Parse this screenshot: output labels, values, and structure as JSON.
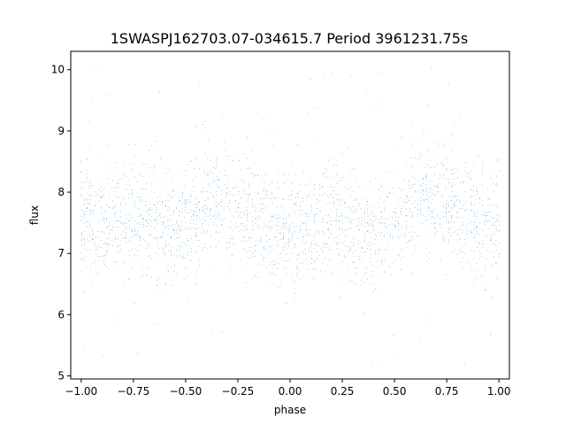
{
  "chart_data": {
    "type": "scatter",
    "title": "1SWASPJ162703.07-034615.7 Period 3961231.75s",
    "xlabel": "phase",
    "ylabel": "flux",
    "xlim": [
      -1.05,
      1.05
    ],
    "ylim": [
      4.95,
      10.3
    ],
    "x_ticks": [
      -1.0,
      -0.75,
      -0.5,
      -0.25,
      0.0,
      0.25,
      0.5,
      0.75,
      1.0
    ],
    "x_tick_labels": [
      "−1.00",
      "−0.75",
      "−0.50",
      "−0.25",
      "0.00",
      "0.25",
      "0.50",
      "0.75",
      "1.00"
    ],
    "y_ticks": [
      5,
      6,
      7,
      8,
      9,
      10
    ],
    "y_tick_labels": [
      "5",
      "6",
      "7",
      "8",
      "9",
      "10"
    ],
    "grid": false,
    "marker_color": "#1f77b4",
    "series": [
      {
        "description_points": "phase-folded light curve samples (representative envelope)",
        "profile_phase": [
          -1.0,
          -0.9,
          -0.8,
          -0.7,
          -0.6,
          -0.5,
          -0.4,
          -0.3,
          -0.2,
          -0.1,
          0.0,
          0.1,
          0.2,
          0.3,
          0.4,
          0.5,
          0.6,
          0.7,
          0.8,
          0.9,
          1.0
        ],
        "profile_mean_flux": [
          7.5,
          7.6,
          7.65,
          7.5,
          7.3,
          7.55,
          7.85,
          7.8,
          7.6,
          7.4,
          7.35,
          7.5,
          7.55,
          7.45,
          7.25,
          7.55,
          7.85,
          7.9,
          7.7,
          7.45,
          7.45
        ],
        "spread": 0.45,
        "outlier_min": 5.15,
        "outlier_max": 10.1
      }
    ]
  }
}
